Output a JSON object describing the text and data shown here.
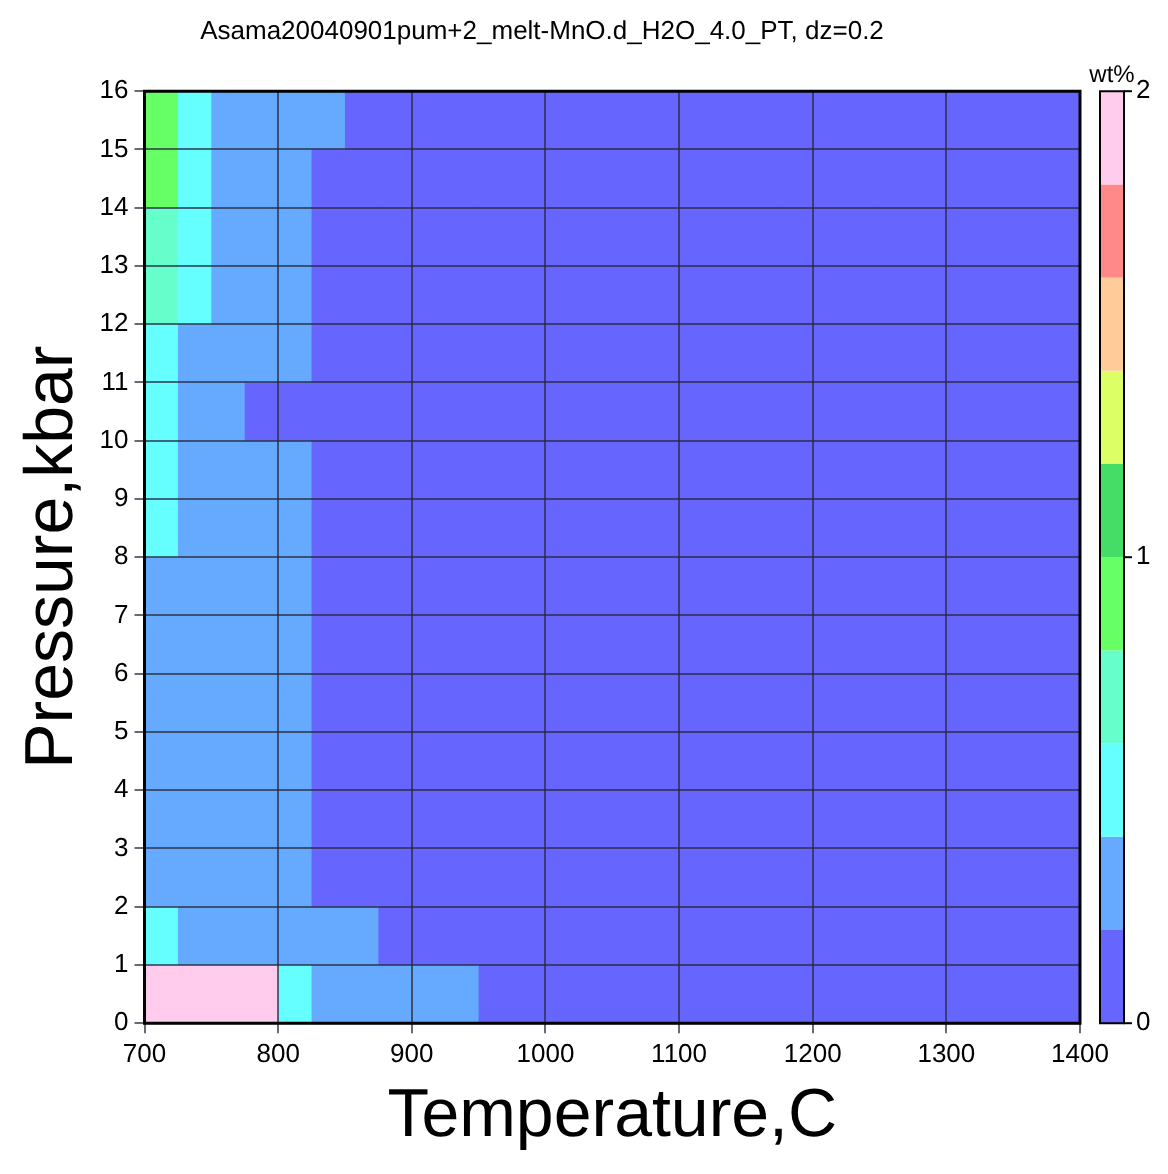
{
  "chart_data": {
    "type": "heatmap",
    "title": "Asama20040901pum+2_melt-MnO.d_H2O_4.0_PT, dz=0.2",
    "xlabel": "Temperature,C",
    "ylabel": "Pressure,kbar",
    "clabel": "wt%",
    "x": [
      712.5,
      737.5,
      762.5,
      787.5,
      812.5,
      837.5,
      862.5,
      887.5,
      912.5,
      937.5,
      962.5,
      987.5,
      1012.5,
      1037.5,
      1062.5,
      1087.5,
      1112.5,
      1137.5,
      1162.5,
      1187.5,
      1212.5,
      1237.5,
      1262.5,
      1287.5,
      1312.5,
      1337.5,
      1362.5,
      1387.5
    ],
    "y": [
      15.5,
      14.5,
      13.5,
      12.5,
      11.5,
      10.5,
      9.5,
      8.5,
      7.5,
      6.5,
      5.5,
      4.5,
      3.5,
      2.5,
      1.5,
      0.5
    ],
    "cells": [
      [
        0.9,
        0.5,
        0.3,
        0.3,
        0.3,
        0.3,
        0.1,
        0.1,
        0.1,
        0.1,
        0.1,
        0.1,
        0.1,
        0.1,
        0.1,
        0.1,
        0.1,
        0.1,
        0.1,
        0.1,
        0.1,
        0.1,
        0.1,
        0.1,
        0.1,
        0.1,
        0.1,
        0.1
      ],
      [
        0.9,
        0.5,
        0.3,
        0.3,
        0.3,
        0.1,
        0.1,
        0.1,
        0.1,
        0.1,
        0.1,
        0.1,
        0.1,
        0.1,
        0.1,
        0.1,
        0.1,
        0.1,
        0.1,
        0.1,
        0.1,
        0.1,
        0.1,
        0.1,
        0.1,
        0.1,
        0.1,
        0.1
      ],
      [
        0.7,
        0.5,
        0.3,
        0.3,
        0.3,
        0.1,
        0.1,
        0.1,
        0.1,
        0.1,
        0.1,
        0.1,
        0.1,
        0.1,
        0.1,
        0.1,
        0.1,
        0.1,
        0.1,
        0.1,
        0.1,
        0.1,
        0.1,
        0.1,
        0.1,
        0.1,
        0.1,
        0.1
      ],
      [
        0.7,
        0.5,
        0.3,
        0.3,
        0.3,
        0.1,
        0.1,
        0.1,
        0.1,
        0.1,
        0.1,
        0.1,
        0.1,
        0.1,
        0.1,
        0.1,
        0.1,
        0.1,
        0.1,
        0.1,
        0.1,
        0.1,
        0.1,
        0.1,
        0.1,
        0.1,
        0.1,
        0.1
      ],
      [
        0.5,
        0.3,
        0.3,
        0.3,
        0.3,
        0.1,
        0.1,
        0.1,
        0.1,
        0.1,
        0.1,
        0.1,
        0.1,
        0.1,
        0.1,
        0.1,
        0.1,
        0.1,
        0.1,
        0.1,
        0.1,
        0.1,
        0.1,
        0.1,
        0.1,
        0.1,
        0.1,
        0.1
      ],
      [
        0.5,
        0.3,
        0.3,
        0.1,
        0.1,
        0.1,
        0.1,
        0.1,
        0.1,
        0.1,
        0.1,
        0.1,
        0.1,
        0.1,
        0.1,
        0.1,
        0.1,
        0.1,
        0.1,
        0.1,
        0.1,
        0.1,
        0.1,
        0.1,
        0.1,
        0.1,
        0.1,
        0.1
      ],
      [
        0.5,
        0.3,
        0.3,
        0.3,
        0.3,
        0.1,
        0.1,
        0.1,
        0.1,
        0.1,
        0.1,
        0.1,
        0.1,
        0.1,
        0.1,
        0.1,
        0.1,
        0.1,
        0.1,
        0.1,
        0.1,
        0.1,
        0.1,
        0.1,
        0.1,
        0.1,
        0.1,
        0.1
      ],
      [
        0.5,
        0.3,
        0.3,
        0.3,
        0.3,
        0.1,
        0.1,
        0.1,
        0.1,
        0.1,
        0.1,
        0.1,
        0.1,
        0.1,
        0.1,
        0.1,
        0.1,
        0.1,
        0.1,
        0.1,
        0.1,
        0.1,
        0.1,
        0.1,
        0.1,
        0.1,
        0.1,
        0.1
      ],
      [
        0.3,
        0.3,
        0.3,
        0.3,
        0.3,
        0.1,
        0.1,
        0.1,
        0.1,
        0.1,
        0.1,
        0.1,
        0.1,
        0.1,
        0.1,
        0.1,
        0.1,
        0.1,
        0.1,
        0.1,
        0.1,
        0.1,
        0.1,
        0.1,
        0.1,
        0.1,
        0.1,
        0.1
      ],
      [
        0.3,
        0.3,
        0.3,
        0.3,
        0.3,
        0.1,
        0.1,
        0.1,
        0.1,
        0.1,
        0.1,
        0.1,
        0.1,
        0.1,
        0.1,
        0.1,
        0.1,
        0.1,
        0.1,
        0.1,
        0.1,
        0.1,
        0.1,
        0.1,
        0.1,
        0.1,
        0.1,
        0.1
      ],
      [
        0.3,
        0.3,
        0.3,
        0.3,
        0.3,
        0.1,
        0.1,
        0.1,
        0.1,
        0.1,
        0.1,
        0.1,
        0.1,
        0.1,
        0.1,
        0.1,
        0.1,
        0.1,
        0.1,
        0.1,
        0.1,
        0.1,
        0.1,
        0.1,
        0.1,
        0.1,
        0.1,
        0.1
      ],
      [
        0.3,
        0.3,
        0.3,
        0.3,
        0.3,
        0.1,
        0.1,
        0.1,
        0.1,
        0.1,
        0.1,
        0.1,
        0.1,
        0.1,
        0.1,
        0.1,
        0.1,
        0.1,
        0.1,
        0.1,
        0.1,
        0.1,
        0.1,
        0.1,
        0.1,
        0.1,
        0.1,
        0.1
      ],
      [
        0.3,
        0.3,
        0.3,
        0.3,
        0.3,
        0.1,
        0.1,
        0.1,
        0.1,
        0.1,
        0.1,
        0.1,
        0.1,
        0.1,
        0.1,
        0.1,
        0.1,
        0.1,
        0.1,
        0.1,
        0.1,
        0.1,
        0.1,
        0.1,
        0.1,
        0.1,
        0.1,
        0.1
      ],
      [
        0.3,
        0.3,
        0.3,
        0.3,
        0.3,
        0.1,
        0.1,
        0.1,
        0.1,
        0.1,
        0.1,
        0.1,
        0.1,
        0.1,
        0.1,
        0.1,
        0.1,
        0.1,
        0.1,
        0.1,
        0.1,
        0.1,
        0.1,
        0.1,
        0.1,
        0.1,
        0.1,
        0.1
      ],
      [
        0.5,
        0.3,
        0.3,
        0.3,
        0.3,
        0.3,
        0.3,
        0.1,
        0.1,
        0.1,
        0.1,
        0.1,
        0.1,
        0.1,
        0.1,
        0.1,
        0.1,
        0.1,
        0.1,
        0.1,
        0.1,
        0.1,
        0.1,
        0.1,
        0.1,
        0.1,
        0.1,
        0.1
      ],
      [
        1.9,
        1.9,
        1.9,
        1.9,
        0.5,
        0.3,
        0.3,
        0.3,
        0.3,
        0.3,
        0.1,
        0.1,
        0.1,
        0.1,
        0.1,
        0.1,
        0.1,
        0.1,
        0.1,
        0.1,
        0.1,
        0.1,
        0.1,
        0.1,
        0.1,
        0.1,
        0.1,
        0.1
      ]
    ],
    "xlim": [
      700,
      1400
    ],
    "xticks": [
      700,
      800,
      900,
      1000,
      1100,
      1200,
      1300,
      1400
    ],
    "ylim": [
      0,
      16
    ],
    "yticks": [
      0,
      1,
      2,
      3,
      4,
      5,
      6,
      7,
      8,
      9,
      10,
      11,
      12,
      13,
      14,
      15,
      16
    ],
    "clim": [
      0,
      2
    ],
    "cticks": [
      0,
      1,
      2
    ],
    "grid": true
  }
}
